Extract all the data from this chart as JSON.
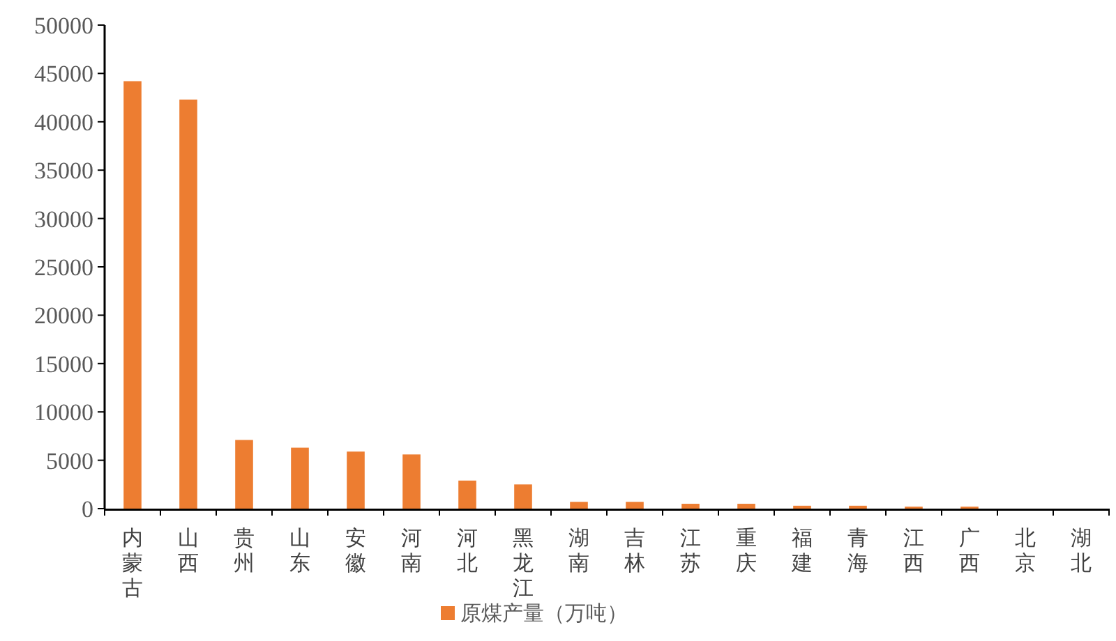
{
  "chart_data": {
    "type": "bar",
    "categories": [
      "内蒙古",
      "山西",
      "贵州",
      "山东",
      "安徽",
      "河南",
      "河北",
      "黑龙江",
      "湖南",
      "吉林",
      "江苏",
      "重庆",
      "福建",
      "青海",
      "江西",
      "广西",
      "北京",
      "湖北"
    ],
    "series": [
      {
        "name": "原煤产量（万吨）",
        "color": "#ed7d31",
        "values": [
          44200,
          42300,
          7100,
          6300,
          5900,
          5600,
          2900,
          2500,
          700,
          700,
          500,
          500,
          300,
          300,
          200,
          200,
          0,
          0
        ]
      }
    ],
    "ylim": [
      0,
      50000
    ],
    "yticks": [
      0,
      5000,
      10000,
      15000,
      20000,
      25000,
      30000,
      35000,
      40000,
      45000,
      50000
    ],
    "grid": false,
    "legend": "bottom"
  }
}
